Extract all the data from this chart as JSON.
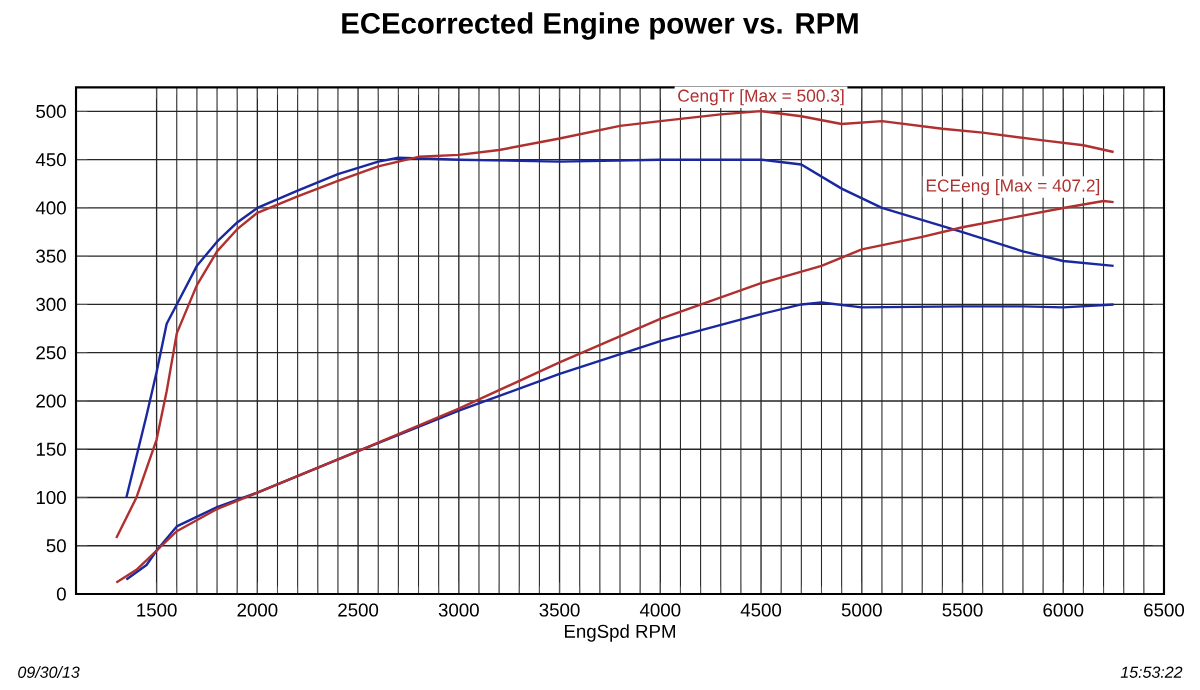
{
  "chart_data": {
    "type": "line",
    "title": "ECEcorrected Engine power vs. RPM",
    "xlabel": "EngSpd  RPM",
    "xlim": [
      1100,
      6500
    ],
    "ylim": [
      0,
      525
    ],
    "xticks": [
      1500,
      2000,
      2500,
      3000,
      3500,
      4000,
      4500,
      5000,
      5500,
      6000,
      6500
    ],
    "yticks": [
      0,
      50,
      100,
      150,
      200,
      250,
      300,
      350,
      400,
      450,
      500
    ],
    "grid": true,
    "marker": "none",
    "line_style": "solid",
    "series": [
      {
        "color": "#1a28a0",
        "x": [
          1350,
          1450,
          1500,
          1550,
          1600,
          1700,
          1800,
          1900,
          2000,
          2200,
          2400,
          2600,
          2700,
          3000,
          3500,
          4000,
          4500,
          4700,
          4900,
          5100,
          5500,
          5800,
          6000,
          6250
        ],
        "values": [
          100,
          185,
          230,
          280,
          300,
          340,
          365,
          385,
          400,
          418,
          435,
          448,
          452,
          450,
          448,
          450,
          450,
          445,
          420,
          400,
          375,
          355,
          345,
          340
        ]
      },
      {
        "color": "#b03030",
        "x": [
          1300,
          1400,
          1500,
          1550,
          1600,
          1700,
          1800,
          1900,
          2000,
          2200,
          2400,
          2600,
          2800,
          3000,
          3200,
          3500,
          3800,
          4000,
          4300,
          4500,
          4700,
          4900,
          5100,
          5400,
          5600,
          5900,
          6100,
          6250
        ],
        "values": [
          58,
          100,
          160,
          210,
          270,
          320,
          355,
          378,
          395,
          412,
          428,
          443,
          453,
          455,
          460,
          472,
          485,
          490,
          497,
          500.3,
          495,
          487,
          490,
          482,
          478,
          470,
          465,
          458
        ]
      },
      {
        "color": "#1a28a0",
        "x": [
          1350,
          1450,
          1500,
          1600,
          1800,
          2000,
          2500,
          3000,
          3500,
          4000,
          4500,
          4700,
          4800,
          5000,
          5500,
          5800,
          6000,
          6250
        ],
        "values": [
          15,
          30,
          45,
          70,
          90,
          105,
          148,
          190,
          228,
          262,
          290,
          300,
          302,
          297,
          298,
          298,
          297,
          300
        ]
      },
      {
        "color": "#b03030",
        "x": [
          1300,
          1400,
          1500,
          1600,
          1800,
          2000,
          2500,
          3000,
          3500,
          4000,
          4500,
          4800,
          5000,
          5300,
          5500,
          5800,
          6000,
          6200,
          6250
        ],
        "values": [
          12,
          25,
          45,
          65,
          88,
          105,
          148,
          192,
          240,
          285,
          322,
          340,
          357,
          370,
          380,
          392,
          400,
          407.2,
          406
        ]
      }
    ],
    "annotations": [
      {
        "text": "CengTr [Max = 500.3]",
        "x": 4500,
        "y": 500.3
      },
      {
        "text": "ECEeng [Max = 407.2]",
        "x": 6200,
        "y": 407.2
      },
      "09/30/13",
      "15:53:22"
    ]
  }
}
